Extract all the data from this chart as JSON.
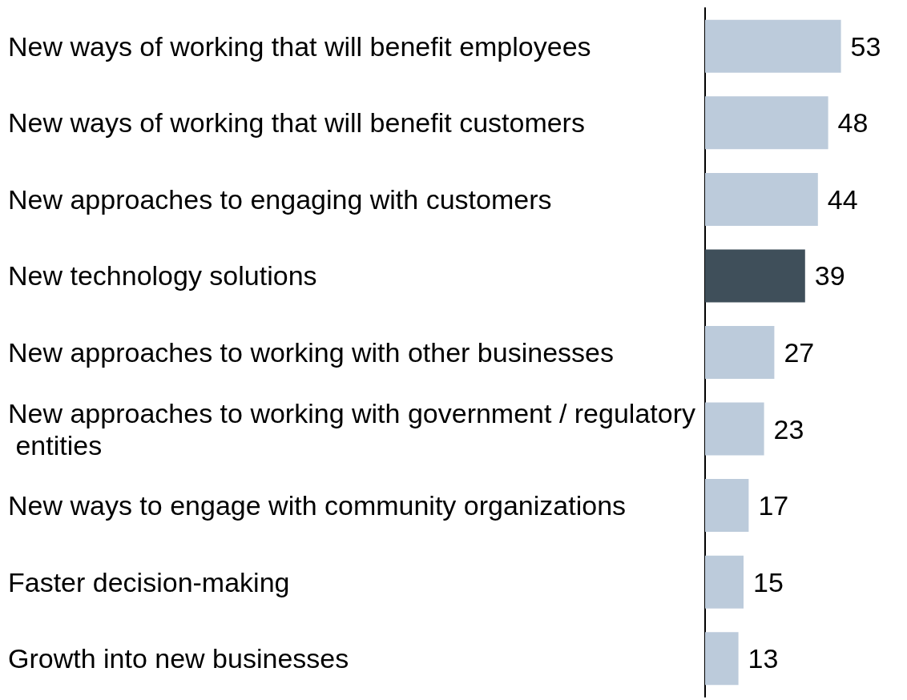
{
  "chart_data": {
    "type": "bar",
    "orientation": "horizontal",
    "categories": [
      "New ways of working that will benefit employees",
      "New ways of working that will benefit customers",
      "New approaches to engaging with customers",
      "New technology solutions",
      "New approaches to working with other businesses",
      "New approaches to working with government / regulatory entities",
      "New ways to engage with community organizations",
      "Faster decision-making",
      "Growth into new businesses"
    ],
    "values": [
      53,
      48,
      44,
      39,
      27,
      23,
      17,
      15,
      13
    ],
    "colors": [
      "#bccbdb",
      "#bccbdb",
      "#bccbdb",
      "#3f4f5a",
      "#bccbdb",
      "#bccbdb",
      "#bccbdb",
      "#bccbdb",
      "#bccbdb"
    ],
    "data_labels": true,
    "tick_labels": "y",
    "grid": false
  }
}
